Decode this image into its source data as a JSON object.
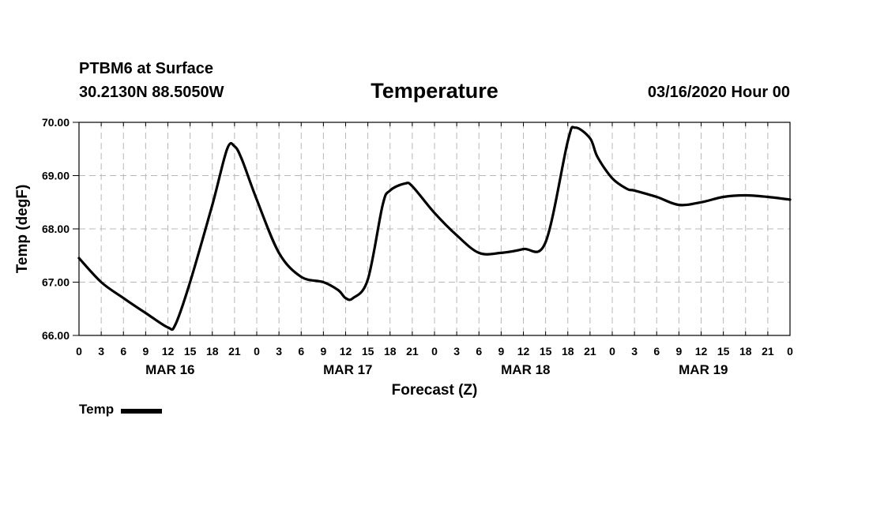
{
  "header": {
    "station": "PTBM6 at Surface",
    "coords": "30.2130N 88.5050W",
    "datetime": "03/16/2020 Hour 00"
  },
  "chart_data": {
    "type": "line",
    "title": "Temperature",
    "xlabel": "Forecast (Z)",
    "ylabel": "Temp (degF)",
    "ylim": [
      66.0,
      70.0
    ],
    "yticks": [
      "66.00",
      "67.00",
      "68.00",
      "69.00",
      "70.00"
    ],
    "xlim": [
      0,
      96
    ],
    "xtick_labels": [
      "0",
      "3",
      "6",
      "9",
      "12",
      "15",
      "18",
      "21",
      "0",
      "3",
      "6",
      "9",
      "12",
      "15",
      "18",
      "21",
      "0",
      "3",
      "6",
      "9",
      "12",
      "15",
      "18",
      "21",
      "0",
      "3",
      "6",
      "9",
      "12",
      "15",
      "18",
      "21",
      "0"
    ],
    "date_labels": [
      "MAR 16",
      "MAR 17",
      "MAR 18",
      "MAR 19"
    ],
    "grid": true,
    "legend_position": "bottom-left",
    "series": [
      {
        "name": "Temp",
        "x": [
          0,
          3,
          6,
          9,
          12,
          13,
          15,
          18,
          20,
          21,
          22,
          24,
          27,
          30,
          33,
          35,
          36,
          37,
          39,
          41,
          42,
          44,
          45,
          48,
          51,
          54,
          57,
          60,
          63,
          66,
          67,
          69,
          70,
          72,
          74,
          75,
          78,
          81,
          84,
          87,
          90,
          93,
          96
        ],
        "values": [
          67.45,
          67.0,
          66.7,
          66.42,
          66.15,
          66.2,
          67.0,
          68.45,
          69.5,
          69.55,
          69.3,
          68.55,
          67.55,
          67.1,
          67.0,
          66.85,
          66.7,
          66.7,
          67.05,
          68.45,
          68.72,
          68.85,
          68.8,
          68.3,
          67.88,
          67.55,
          67.55,
          67.62,
          67.75,
          69.65,
          69.9,
          69.7,
          69.35,
          68.95,
          68.75,
          68.72,
          68.6,
          68.45,
          68.5,
          68.6,
          68.63,
          68.6,
          68.55
        ]
      }
    ]
  }
}
